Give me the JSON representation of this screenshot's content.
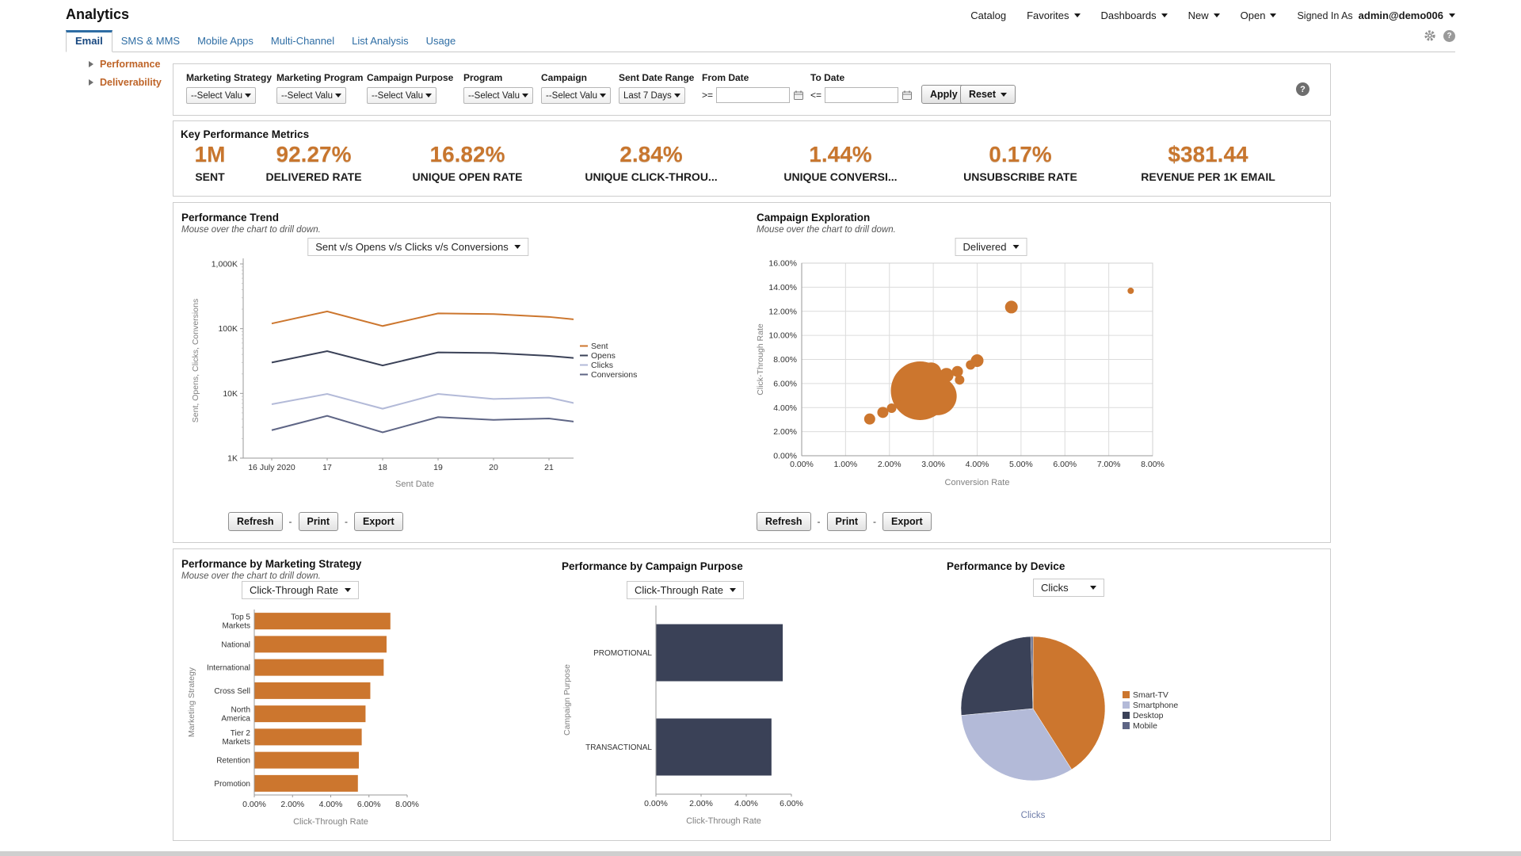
{
  "colors": {
    "orange": "#CC762E",
    "navy": "#3A4157",
    "periwinkle": "#B3BAD8",
    "slate": "#5E6585",
    "link": "#2E6DA4"
  },
  "header": {
    "title": "Analytics",
    "nav": [
      {
        "label": "Catalog",
        "caret": false
      },
      {
        "label": "Favorites",
        "caret": true
      },
      {
        "label": "Dashboards",
        "caret": true
      },
      {
        "label": "New",
        "caret": true
      },
      {
        "label": "Open",
        "caret": true
      }
    ],
    "signed_in": "Signed In As",
    "user": "admin@demo006",
    "icons": [
      "gear-icon",
      "help-icon"
    ]
  },
  "tabs": {
    "active": "Email",
    "items": [
      "Email",
      "SMS & MMS",
      "Mobile Apps",
      "Multi-Channel",
      "List Analysis",
      "Usage"
    ]
  },
  "sidebar": {
    "items": [
      "Performance",
      "Deliverability"
    ]
  },
  "filters": {
    "selects": [
      {
        "label": "Marketing Strategy",
        "value": "--Select Valu"
      },
      {
        "label": "Marketing Program",
        "value": "--Select Valu"
      },
      {
        "label": "Campaign Purpose",
        "value": "--Select Valu"
      },
      {
        "label": "Program",
        "value": "--Select Valu"
      },
      {
        "label": "Campaign",
        "value": "--Select Valu"
      }
    ],
    "date_range": {
      "label": "Sent Date Range",
      "value": "Last 7 Days"
    },
    "from_date": {
      "label": "From Date",
      "op": ">="
    },
    "to_date": {
      "label": "To Date",
      "op": "<="
    },
    "apply": "Apply",
    "reset": "Reset"
  },
  "kpm": {
    "title": "Key Performance Metrics",
    "metrics": [
      {
        "value": "1M",
        "label": "SENT"
      },
      {
        "value": "92.27%",
        "label": "DELIVERED RATE"
      },
      {
        "value": "16.82%",
        "label": "UNIQUE OPEN RATE"
      },
      {
        "value": "2.84%",
        "label": "UNIQUE CLICK-THROU..."
      },
      {
        "value": "1.44%",
        "label": "UNIQUE CONVERSI..."
      },
      {
        "value": "0.17%",
        "label": "UNSUBSCRIBE RATE"
      },
      {
        "value": "$381.44",
        "label": "REVENUE PER 1K EMAIL"
      }
    ]
  },
  "actions": {
    "refresh": "Refresh",
    "print": "Print",
    "export": "Export",
    "sep": "-"
  },
  "chart_data": [
    {
      "id": "trend",
      "type": "line",
      "title": "Performance Trend",
      "subtitle": "Mouse over the chart to drill down.",
      "selector": "Sent v/s Opens v/s Clicks v/s Conversions",
      "x": [
        "16 July 2020",
        "17",
        "18",
        "19",
        "20",
        "21"
      ],
      "xlabel": "Sent Date",
      "ylabel": "Sent, Opens, Clicks, Conversions",
      "yscale": "log",
      "ylim": [
        1000,
        1000000
      ],
      "yticks": [
        {
          "label": "1K",
          "value": 1000
        },
        {
          "label": "10K",
          "value": 10000
        },
        {
          "label": "100K",
          "value": 100000
        },
        {
          "label": "1,000K",
          "value": 1000000
        }
      ],
      "series": [
        {
          "name": "Sent",
          "color": "#CC762E",
          "values": [
            120000,
            185000,
            110000,
            172000,
            168000,
            152000
          ],
          "tail": 125000
        },
        {
          "name": "Opens",
          "color": "#3A4157",
          "values": [
            30000,
            45000,
            27000,
            43000,
            42000,
            38000
          ],
          "tail": 32000
        },
        {
          "name": "Clicks",
          "color": "#B3BAD8",
          "values": [
            6800,
            9800,
            5800,
            9800,
            8200,
            8600
          ],
          "tail": 5600
        },
        {
          "name": "Conversions",
          "color": "#5E6585",
          "values": [
            2700,
            4500,
            2500,
            4300,
            3900,
            4100
          ],
          "tail": 3200
        }
      ],
      "legend_position": "right"
    },
    {
      "id": "exploration",
      "type": "scatter",
      "title": "Campaign Exploration",
      "subtitle": "Mouse over the chart to drill down.",
      "selector": "Delivered",
      "xlabel": "Conversion Rate",
      "ylabel": "Click-Through Rate",
      "xlim": [
        0,
        8
      ],
      "ylim": [
        0,
        16
      ],
      "xticks": [
        "0.00%",
        "1.00%",
        "2.00%",
        "3.00%",
        "4.00%",
        "5.00%",
        "6.00%",
        "7.00%",
        "8.00%"
      ],
      "yticks": [
        "0.00%",
        "2.00%",
        "4.00%",
        "6.00%",
        "8.00%",
        "10.00%",
        "12.00%",
        "14.00%",
        "16.00%"
      ],
      "grid": true,
      "color": "#CC762E",
      "points": [
        {
          "x": 1.55,
          "y": 3.05,
          "r": 7
        },
        {
          "x": 1.85,
          "y": 3.6,
          "r": 7
        },
        {
          "x": 2.05,
          "y": 3.95,
          "r": 6
        },
        {
          "x": 2.2,
          "y": 4.3,
          "r": 5
        },
        {
          "x": 2.7,
          "y": 5.4,
          "r": 37
        },
        {
          "x": 3.1,
          "y": 4.95,
          "r": 24
        },
        {
          "x": 2.95,
          "y": 6.9,
          "r": 13
        },
        {
          "x": 3.3,
          "y": 6.7,
          "r": 9
        },
        {
          "x": 3.55,
          "y": 7.0,
          "r": 7
        },
        {
          "x": 3.6,
          "y": 6.3,
          "r": 6
        },
        {
          "x": 3.85,
          "y": 7.55,
          "r": 6
        },
        {
          "x": 4.0,
          "y": 7.9,
          "r": 8
        },
        {
          "x": 4.78,
          "y": 12.35,
          "r": 8
        },
        {
          "x": 7.5,
          "y": 13.7,
          "r": 4
        }
      ]
    },
    {
      "id": "strategy",
      "type": "bar",
      "title": "Performance by Marketing Strategy",
      "subtitle": "Mouse over the chart to drill down.",
      "selector": "Click-Through Rate",
      "categories": [
        [
          "Top 5",
          "Markets"
        ],
        [
          "National"
        ],
        [
          "International"
        ],
        [
          "Cross Sell"
        ],
        [
          "North",
          "America"
        ],
        [
          "Tier 2",
          "Markets"
        ],
        [
          "Retention"
        ],
        [
          "Promotion"
        ]
      ],
      "values": [
        7.1,
        6.9,
        6.75,
        6.05,
        5.8,
        5.6,
        5.45,
        5.4
      ],
      "xlim": [
        0,
        8
      ],
      "xticks": [
        "0.00%",
        "2.00%",
        "4.00%",
        "6.00%",
        "8.00%"
      ],
      "xlabel": "Click-Through Rate",
      "ylabel": "Marketing Strategy",
      "color": "#CC762E"
    },
    {
      "id": "purpose",
      "type": "bar",
      "title": "Performance by Campaign Purpose",
      "selector": "Click-Through Rate",
      "categories": [
        [
          "PROMOTIONAL"
        ],
        [
          "TRANSACTIONAL"
        ]
      ],
      "values": [
        5.6,
        5.1
      ],
      "xlim": [
        0,
        6
      ],
      "xticks": [
        "0.00%",
        "2.00%",
        "4.00%",
        "6.00%"
      ],
      "xlabel": "Click-Through Rate",
      "ylabel": "Campaign Purpose",
      "color": "#3A4157"
    },
    {
      "id": "device",
      "type": "pie",
      "title": "Performance by Device",
      "selector": "Clicks",
      "caption": "Clicks",
      "slices": [
        {
          "label": "Smart-TV",
          "value": 41,
          "color": "#CC762E"
        },
        {
          "label": "Smartphone",
          "value": 32.5,
          "color": "#B3BAD8"
        },
        {
          "label": "Desktop",
          "value": 26,
          "color": "#3A4157"
        },
        {
          "label": "Mobile",
          "value": 0.5,
          "color": "#5E6585"
        }
      ],
      "legend_position": "right"
    }
  ]
}
